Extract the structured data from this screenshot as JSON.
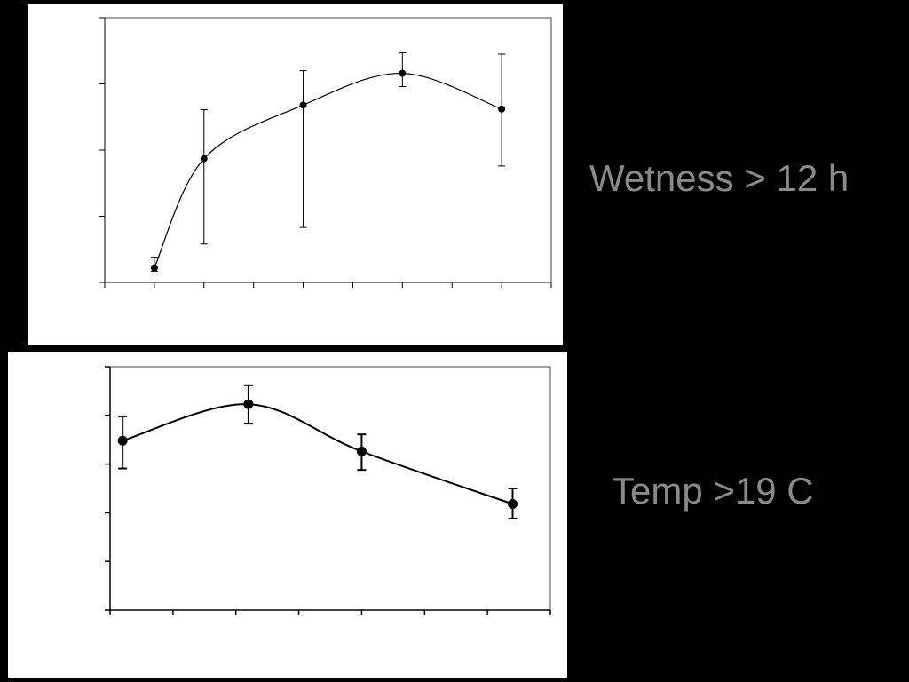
{
  "colors": {
    "background": "#000000",
    "panel": "#ffffff",
    "ink": "#000000",
    "label": "#8a8a8a"
  },
  "chart_data": [
    {
      "type": "line",
      "title": "",
      "xlabel": "",
      "ylabel": "",
      "side_label": "Wetness > 12 h",
      "xlim": [
        0,
        9
      ],
      "ylim": [
        0,
        4
      ],
      "x_ticks": [
        0,
        1,
        2,
        3,
        4,
        5,
        6,
        7,
        8,
        9
      ],
      "y_ticks": [
        0,
        1,
        2,
        3,
        4
      ],
      "smooth": true,
      "grid": false,
      "series": [
        {
          "x": [
            1,
            2,
            4,
            6,
            8
          ],
          "y": [
            0.22,
            1.87,
            2.68,
            3.16,
            2.62
          ],
          "err_low": [
            0.17,
            0.58,
            0.83,
            2.96,
            1.76
          ],
          "err_high": [
            0.38,
            2.61,
            3.2,
            3.47,
            3.45
          ]
        }
      ]
    },
    {
      "type": "line",
      "title": "",
      "xlabel": "",
      "ylabel": "",
      "side_label": "Temp >19 C",
      "xlim": [
        0,
        7
      ],
      "ylim": [
        0,
        5
      ],
      "x_ticks": [
        0,
        1,
        2,
        3,
        4,
        5,
        6,
        7
      ],
      "y_ticks": [
        0,
        1,
        2,
        3,
        4,
        5
      ],
      "smooth": true,
      "grid": false,
      "series": [
        {
          "x": [
            0.2,
            2.2,
            4.0,
            6.4
          ],
          "y": [
            3.48,
            4.23,
            3.26,
            2.18
          ],
          "err_low": [
            2.91,
            3.83,
            2.88,
            1.88
          ],
          "err_high": [
            3.98,
            4.62,
            3.61,
            2.5
          ]
        }
      ]
    }
  ]
}
